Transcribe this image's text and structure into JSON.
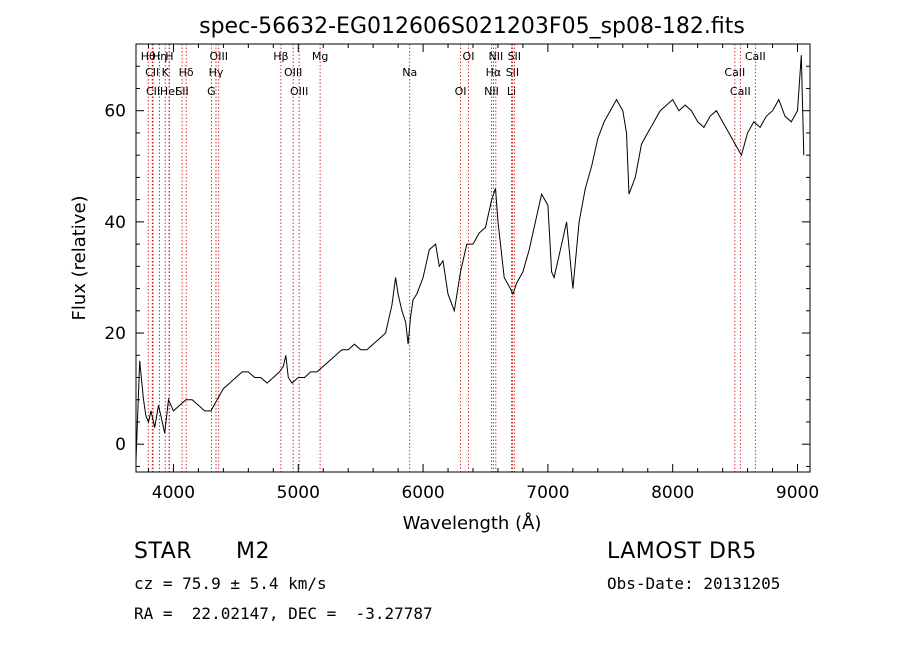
{
  "chart_data": {
    "type": "line",
    "title": "spec-56632-EG012606S021203F05_sp08-182.fits",
    "xlabel": "Wavelength (Å)",
    "ylabel": "Flux (relative)",
    "xlim": [
      3700,
      9100
    ],
    "ylim": [
      -5,
      72
    ],
    "x_ticks": [
      4000,
      5000,
      6000,
      7000,
      8000,
      9000
    ],
    "y_ticks": [
      0,
      20,
      40,
      60
    ],
    "grid": false,
    "series": [
      {
        "x": [
          3700,
          3730,
          3760,
          3780,
          3800,
          3820,
          3850,
          3880,
          3900,
          3930,
          3960,
          4000,
          4050,
          4100,
          4150,
          4200,
          4250,
          4300,
          4350,
          4400,
          4450,
          4500,
          4550,
          4600,
          4650,
          4700,
          4750,
          4800,
          4850,
          4880,
          4900,
          4920,
          4950,
          5000,
          5050,
          5100,
          5150,
          5200,
          5250,
          5300,
          5350,
          5400,
          5450,
          5500,
          5550,
          5600,
          5650,
          5700,
          5750,
          5780,
          5800,
          5830,
          5860,
          5880,
          5900,
          5920,
          5950,
          6000,
          6050,
          6100,
          6130,
          6160,
          6200,
          6250,
          6300,
          6350,
          6400,
          6450,
          6500,
          6550,
          6580,
          6600,
          6650,
          6700,
          6720,
          6750,
          6800,
          6850,
          6900,
          6950,
          7000,
          7030,
          7050,
          7100,
          7150,
          7200,
          7250,
          7300,
          7350,
          7400,
          7450,
          7500,
          7550,
          7600,
          7630,
          7650,
          7700,
          7750,
          7800,
          7850,
          7900,
          7950,
          8000,
          8050,
          8100,
          8150,
          8200,
          8250,
          8300,
          8350,
          8400,
          8450,
          8500,
          8550,
          8600,
          8650,
          8700,
          8750,
          8800,
          8850,
          8900,
          8950,
          9000,
          9030,
          9050
        ],
        "y": [
          -3,
          15,
          8,
          5,
          4,
          6,
          3,
          7,
          5,
          2,
          8,
          6,
          7,
          8,
          8,
          7,
          6,
          6,
          8,
          10,
          11,
          12,
          13,
          13,
          12,
          12,
          11,
          12,
          13,
          14,
          16,
          12,
          11,
          12,
          12,
          13,
          13,
          14,
          15,
          16,
          17,
          17,
          18,
          17,
          17,
          18,
          19,
          20,
          25,
          30,
          27,
          24,
          22,
          18,
          23,
          26,
          27,
          30,
          35,
          36,
          32,
          33,
          27,
          24,
          31,
          36,
          36,
          38,
          39,
          44,
          46,
          40,
          30,
          28,
          27,
          29,
          31,
          35,
          40,
          45,
          43,
          31,
          30,
          35,
          40,
          28,
          40,
          46,
          50,
          55,
          58,
          60,
          62,
          60,
          56,
          45,
          48,
          54,
          56,
          58,
          60,
          61,
          62,
          60,
          61,
          60,
          58,
          57,
          59,
          60,
          58,
          56,
          54,
          52,
          56,
          58,
          57,
          59,
          60,
          62,
          59,
          58,
          60,
          70,
          52
        ]
      }
    ],
    "annotations": [
      {
        "label": "Hθ",
        "x": 3798
      },
      {
        "label": "CII",
        "x": 3830
      },
      {
        "label": "CII",
        "x": 3837
      },
      {
        "label": "Hη",
        "x": 3889
      },
      {
        "label": "K",
        "x": 3934
      },
      {
        "label": "HeI",
        "x": 3965
      },
      {
        "label": "H",
        "x": 3968
      },
      {
        "label": "Hδ",
        "x": 4102
      },
      {
        "label": "SII",
        "x": 4069
      },
      {
        "label": "OIII",
        "x": 4363
      },
      {
        "label": "Hγ",
        "x": 4341
      },
      {
        "label": "G",
        "x": 4304
      },
      {
        "label": "Hβ",
        "x": 4861
      },
      {
        "label": "OIII",
        "x": 4959
      },
      {
        "label": "OIII",
        "x": 5007
      },
      {
        "label": "Mg",
        "x": 5175
      },
      {
        "label": "Na",
        "x": 5893
      },
      {
        "label": "OI",
        "x": 6300
      },
      {
        "label": "OI",
        "x": 6364
      },
      {
        "label": "Hα",
        "x": 6563
      },
      {
        "label": "NII",
        "x": 6548
      },
      {
        "label": "NII",
        "x": 6583
      },
      {
        "label": "SII",
        "x": 6716
      },
      {
        "label": "Li",
        "x": 6708
      },
      {
        "label": "SII",
        "x": 6731
      },
      {
        "label": "CaII",
        "x": 8498
      },
      {
        "label": "CaII",
        "x": 8542
      },
      {
        "label": "CaII",
        "x": 8662
      }
    ]
  },
  "info": {
    "class_label": "STAR",
    "subclass": "M2",
    "cz": "cz = 75.9 ± 5.4 km/s",
    "coords": "RA =  22.02147, DEC =  -3.27787",
    "survey": "LAMOST DR5",
    "obs_date": "Obs-Date: 20131205"
  }
}
